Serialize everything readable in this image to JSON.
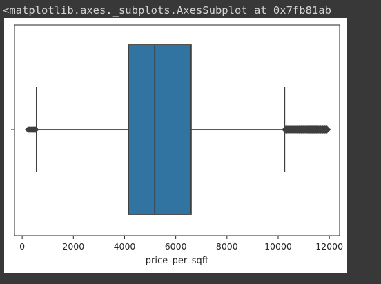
{
  "notebook": {
    "output_repr": "<matplotlib.axes._subplots.AxesSubplot at 0x7fb81ab"
  },
  "chart_data": {
    "type": "box",
    "orientation": "horizontal",
    "xlabel": "price_per_sqft",
    "xlim": [
      -300,
      12400
    ],
    "xticks": [
      0,
      2000,
      4000,
      6000,
      8000,
      10000,
      12000
    ],
    "xtick_labels": [
      "0",
      "2000",
      "4000",
      "6000",
      "8000",
      "10000",
      "12000"
    ],
    "box": {
      "whisker_low": 560,
      "q1": 4150,
      "median": 5180,
      "q3": 6600,
      "whisker_high": 10250
    },
    "outliers_low": [
      230,
      260,
      290,
      320,
      350,
      380,
      410,
      440,
      470,
      500,
      530
    ],
    "outliers_high_range": [
      10300,
      11900
    ],
    "box_color": "#3274a1",
    "line_color": "#3f3f3f",
    "grid": false
  }
}
